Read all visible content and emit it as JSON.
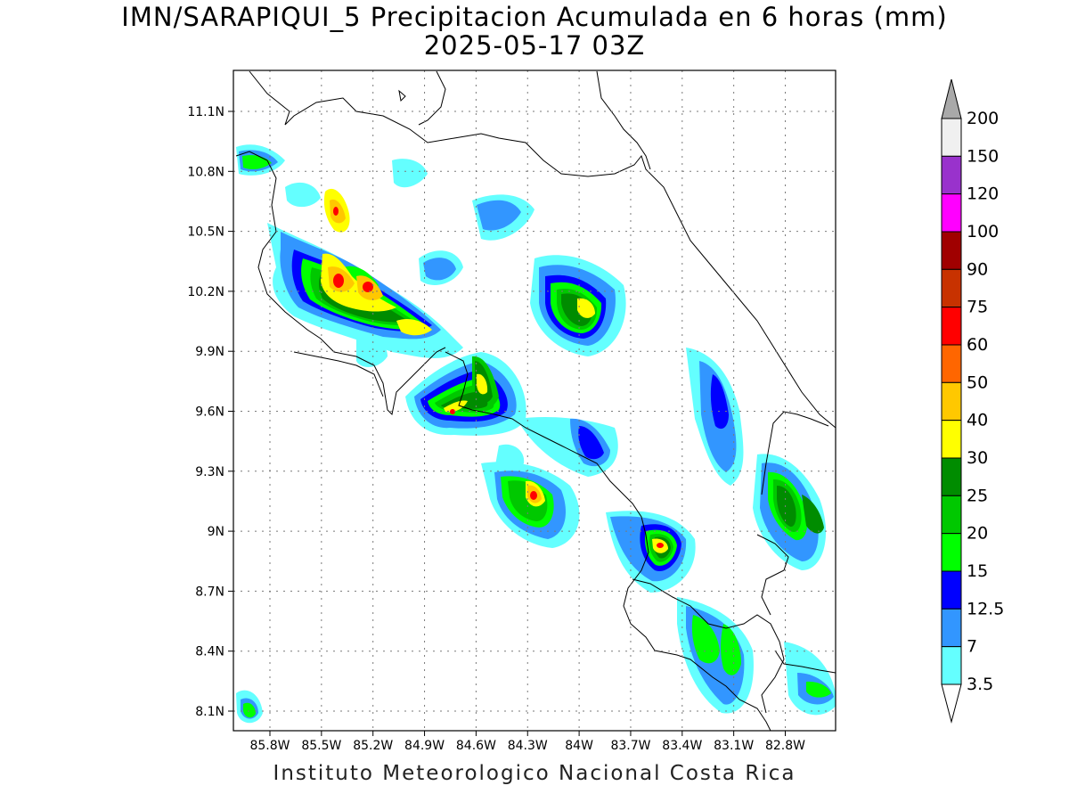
{
  "title_line1": "IMN/SARAPIQUI_5 Precipitacion Acumulada en 6 horas (mm)",
  "title_line2": "2025-05-17 03Z",
  "footer": "Instituto Meteorologico Nacional Costa Rica",
  "map": {
    "lat_labels": [
      "11.1N",
      "10.8N",
      "10.5N",
      "10.2N",
      "9.9N",
      "9.6N",
      "9.3N",
      "9N",
      "8.7N",
      "8.4N",
      "8.1N"
    ],
    "lon_labels": [
      "85.8W",
      "85.5W",
      "85.2W",
      "84.9W",
      "84.6W",
      "84.3W",
      "84W",
      "83.7W",
      "83.4W",
      "83.1W",
      "82.8W"
    ]
  },
  "legend": {
    "labels": [
      "200",
      "150",
      "120",
      "100",
      "90",
      "75",
      "60",
      "50",
      "40",
      "30",
      "25",
      "20",
      "15",
      "12.5",
      "7",
      "3.5"
    ],
    "colors": [
      "#f0f0f0",
      "#9932cc",
      "#ff00ff",
      "#a00000",
      "#c83200",
      "#ff0000",
      "#ff6600",
      "#ffc800",
      "#ffff00",
      "#008c00",
      "#00c800",
      "#00ff00",
      "#0000ff",
      "#3296ff",
      "#64ffff"
    ],
    "top_arrow_color": "#a9a9a9",
    "bottom_arrow_color": "#ffffff"
  }
}
